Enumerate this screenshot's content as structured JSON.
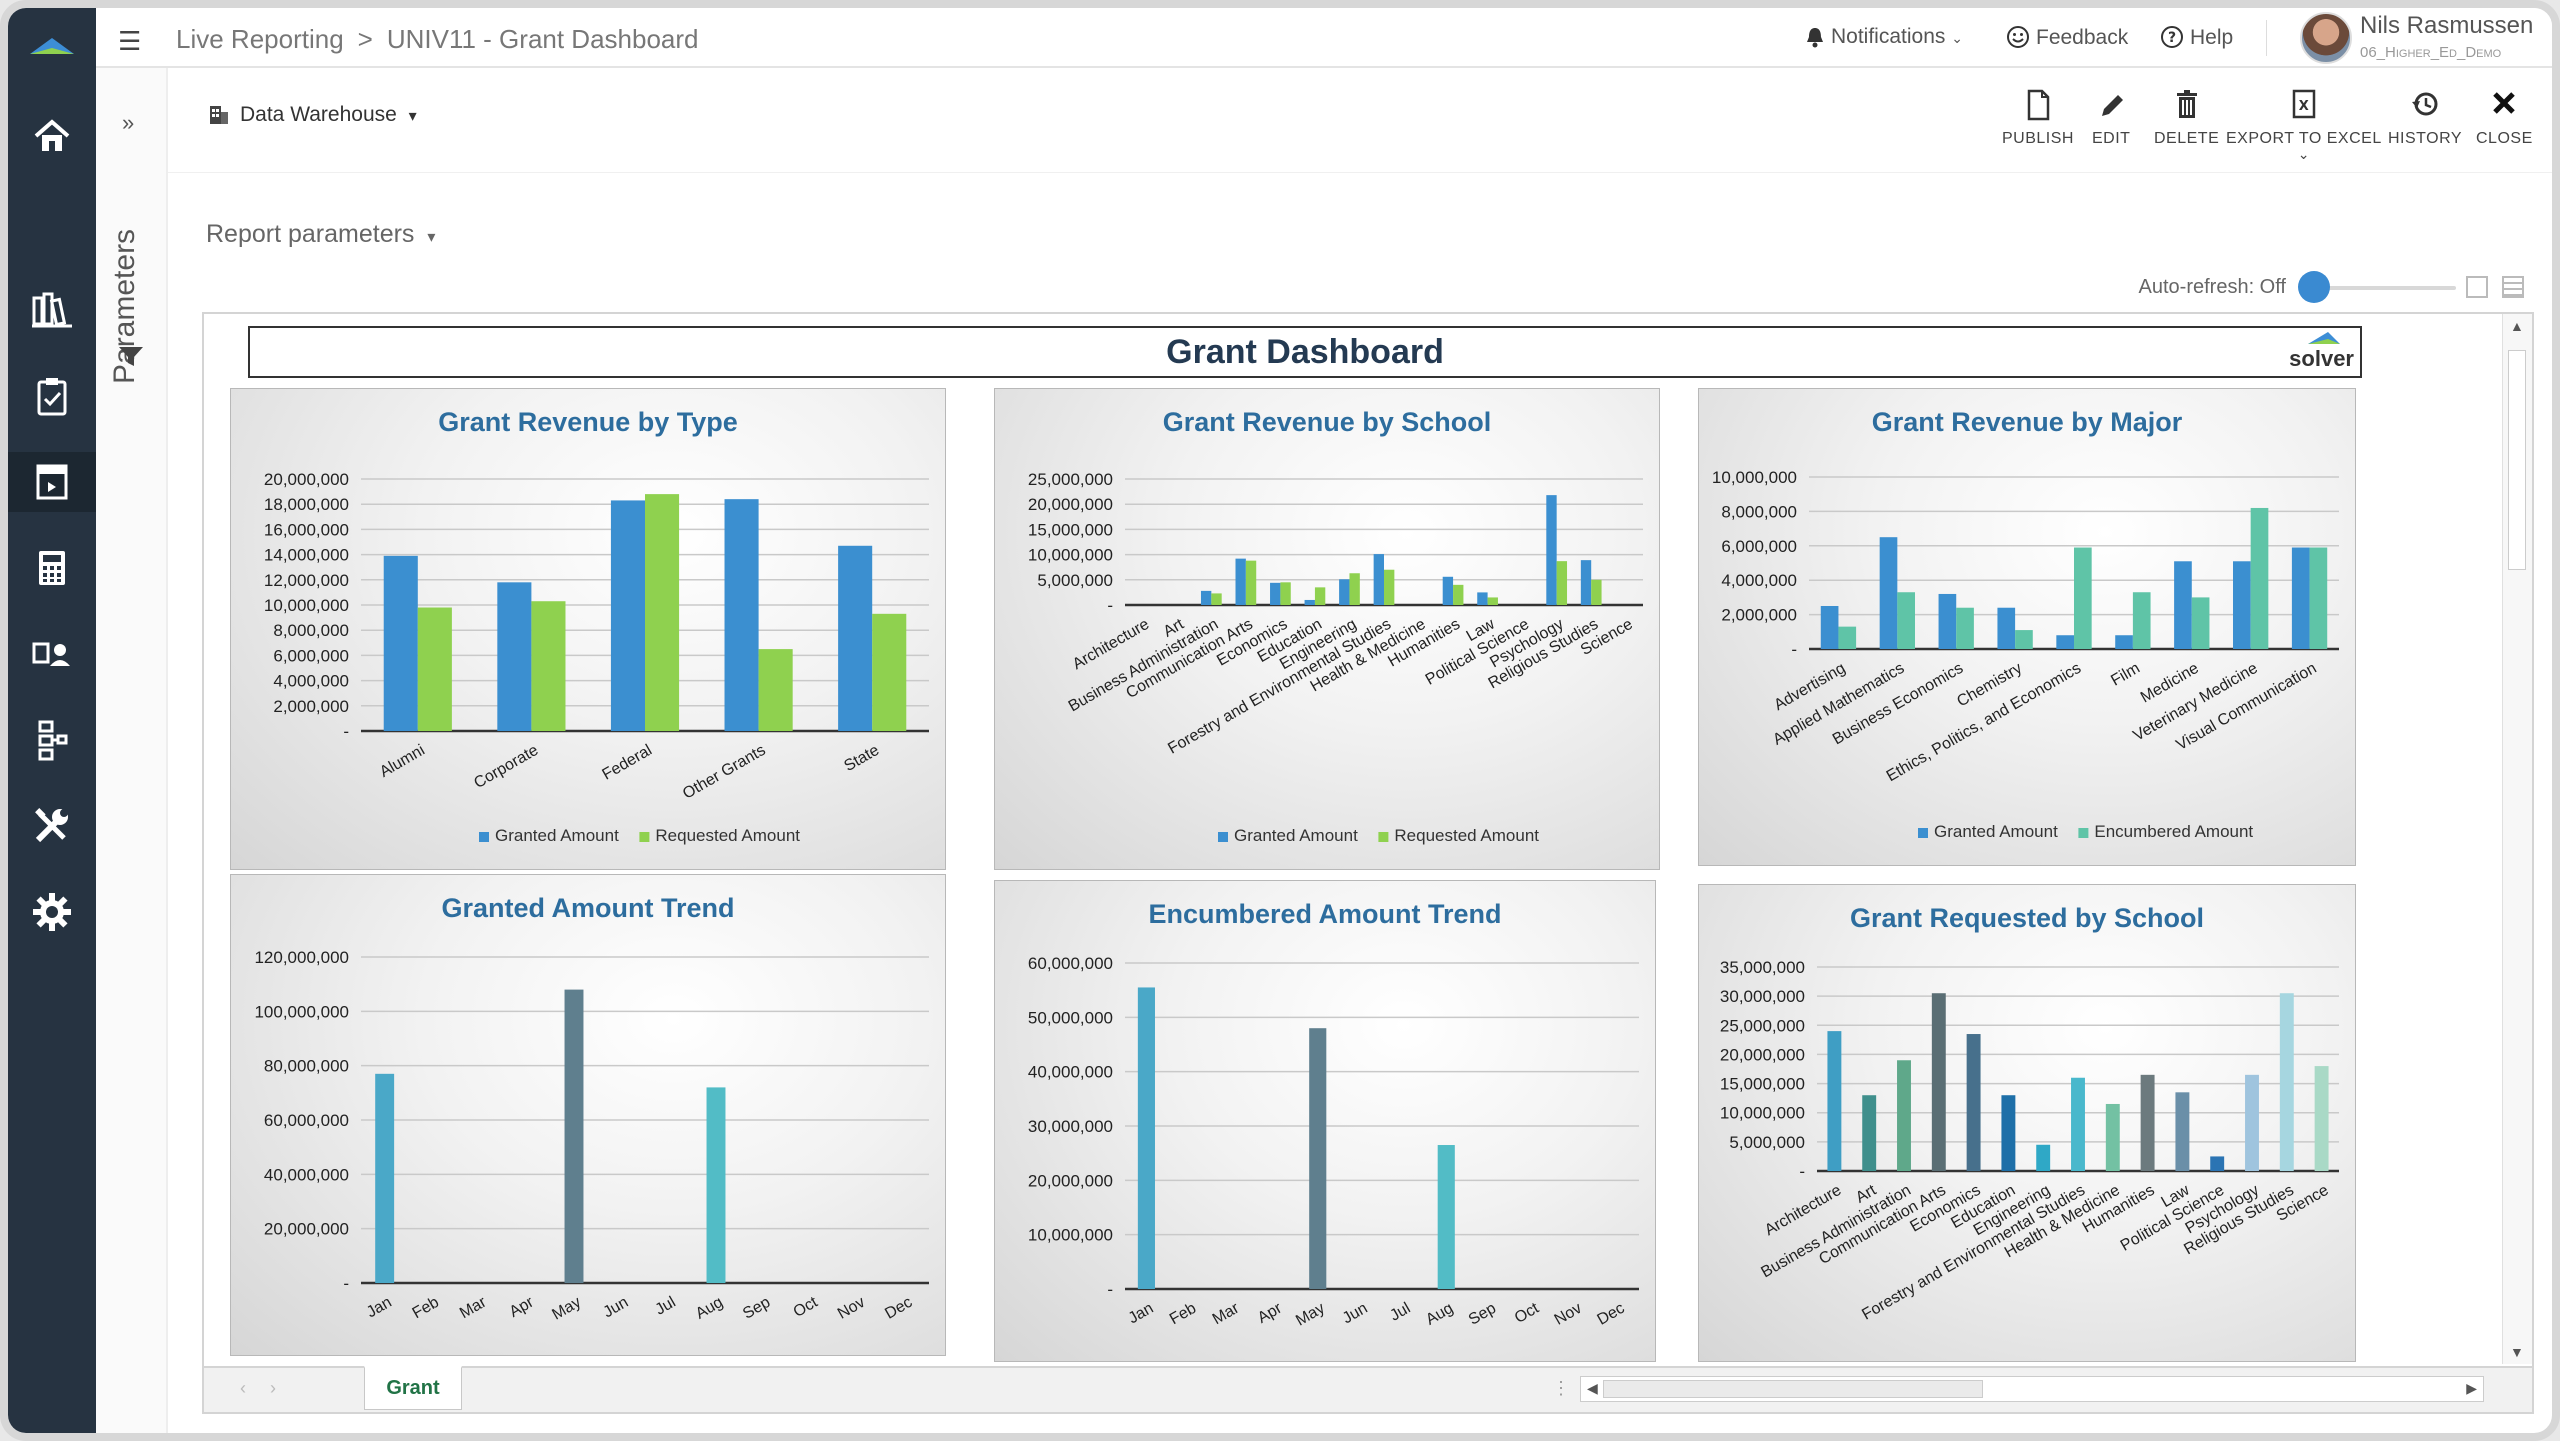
{
  "app": {
    "breadcrumb_root": "Live Reporting",
    "breadcrumb_sep": ">",
    "breadcrumb_page": "UNIV11 - Grant Dashboard"
  },
  "topbar": {
    "notifications": "Notifications",
    "feedback": "Feedback",
    "help": "Help",
    "user_name": "Nils Rasmussen",
    "user_role": "06_Higher_Ed_Demo"
  },
  "sidebar": {
    "items": [
      "home-icon",
      "books-icon",
      "clipboard-icon",
      "report-icon",
      "calculator-icon",
      "user-docs-icon",
      "hierarchy-icon",
      "tools-icon",
      "gear-icon"
    ],
    "active_index": 3
  },
  "params_panel": {
    "label": "Parameters",
    "expand": "»"
  },
  "toolbar": {
    "data_source": "Data Warehouse",
    "publish": "PUBLISH",
    "edit": "EDIT",
    "delete": "DELETE",
    "export": "EXPORT TO EXCEL",
    "history": "HISTORY",
    "close": "CLOSE"
  },
  "report_params": "Report parameters",
  "auto_refresh": "Auto-refresh: Off",
  "dashboard": {
    "title": "Grant Dashboard",
    "brand": "solver"
  },
  "sheet_tab": "Grant",
  "colors": {
    "granted": "#3b8fd0",
    "requested": "#8fd14f",
    "encumbered": "#5fc4a7",
    "title": "#2d6d9e",
    "accent": "#3a8ad1"
  },
  "chart_data": [
    {
      "type": "bar",
      "title": "Grant Revenue by Type",
      "categories": [
        "Alumni",
        "Corporate",
        "Federal",
        "Other Grants",
        "State"
      ],
      "series": [
        {
          "name": "Granted Amount",
          "values": [
            13900000,
            11800000,
            18300000,
            18400000,
            14700000
          ]
        },
        {
          "name": "Requested Amount",
          "values": [
            9800000,
            10300000,
            18800000,
            6500000,
            9300000
          ]
        }
      ],
      "ylim": [
        0,
        20000000
      ],
      "yticks": [
        "-",
        "2,000,000",
        "4,000,000",
        "6,000,000",
        "8,000,000",
        "10,000,000",
        "12,000,000",
        "14,000,000",
        "16,000,000",
        "18,000,000",
        "20,000,000"
      ],
      "legend": "bottom"
    },
    {
      "type": "bar",
      "title": "Grant Revenue by School",
      "categories": [
        "Architecture",
        "Art",
        "Business Administration",
        "Communication Arts",
        "Economics",
        "Education",
        "Engineering",
        "Forestry and Environmental Studies",
        "Health & Medicine",
        "Humanities",
        "Law",
        "Political Science",
        "Psychology",
        "Religious Studies",
        "Science"
      ],
      "series": [
        {
          "name": "Granted Amount",
          "values": [
            0,
            0,
            2800000,
            9200000,
            4400000,
            1000000,
            5100000,
            10100000,
            0,
            5600000,
            2500000,
            0,
            21800000,
            8900000,
            0
          ]
        },
        {
          "name": "Requested Amount",
          "values": [
            0,
            0,
            2300000,
            8800000,
            4500000,
            3500000,
            6300000,
            7000000,
            0,
            4000000,
            1500000,
            0,
            8700000,
            5000000,
            0
          ]
        }
      ],
      "ylim": [
        0,
        25000000
      ],
      "yticks": [
        "-",
        "5,000,000",
        "10,000,000",
        "15,000,000",
        "20,000,000",
        "25,000,000"
      ],
      "legend": "bottom"
    },
    {
      "type": "bar",
      "title": "Grant Revenue by Major",
      "categories": [
        "Advertising",
        "Applied Mathematics",
        "Business Economics",
        "Chemistry",
        "Ethics, Politics, and Economics",
        "Film",
        "Medicine",
        "Veterinary Medicine",
        "Visual Communication"
      ],
      "series": [
        {
          "name": "Granted Amount",
          "values": [
            2500000,
            6500000,
            3200000,
            2400000,
            800000,
            800000,
            5100000,
            5100000,
            5900000
          ]
        },
        {
          "name": "Encumbered Amount",
          "values": [
            1300000,
            3300000,
            2400000,
            1100000,
            5900000,
            3300000,
            3000000,
            8200000,
            5900000
          ]
        }
      ],
      "ylim": [
        0,
        10000000
      ],
      "yticks": [
        "-",
        "2,000,000",
        "4,000,000",
        "6,000,000",
        "8,000,000",
        "10,000,000"
      ],
      "legend": "bottom"
    },
    {
      "type": "bar",
      "title": "Granted Amount Trend",
      "categories": [
        "Jan",
        "Feb",
        "Mar",
        "Apr",
        "May",
        "Jun",
        "Jul",
        "Aug",
        "Sep",
        "Oct",
        "Nov",
        "Dec"
      ],
      "values": [
        77000000,
        0,
        0,
        0,
        108000000,
        0,
        0,
        72000000,
        0,
        0,
        0,
        0
      ],
      "colors": [
        "#4aa8c8",
        "",
        "",
        "",
        "#5f7f8e",
        "",
        "",
        "#52bcc6",
        "",
        "",
        "",
        ""
      ],
      "ylim": [
        0,
        120000000
      ],
      "yticks": [
        "-",
        "20,000,000",
        "40,000,000",
        "60,000,000",
        "80,000,000",
        "100,000,000",
        "120,000,000"
      ]
    },
    {
      "type": "bar",
      "title": "Encumbered Amount Trend",
      "categories": [
        "Jan",
        "Feb",
        "Mar",
        "Apr",
        "May",
        "Jun",
        "Jul",
        "Aug",
        "Sep",
        "Oct",
        "Nov",
        "Dec"
      ],
      "values": [
        55500000,
        0,
        0,
        0,
        48000000,
        0,
        0,
        26500000,
        0,
        0,
        0,
        0
      ],
      "colors": [
        "#4aa8c8",
        "",
        "",
        "",
        "#5f7f8e",
        "",
        "",
        "#52bcc6",
        "",
        "",
        "",
        ""
      ],
      "ylim": [
        0,
        60000000
      ],
      "yticks": [
        "-",
        "10,000,000",
        "20,000,000",
        "30,000,000",
        "40,000,000",
        "50,000,000",
        "60,000,000"
      ]
    },
    {
      "type": "bar",
      "title": "Grant Requested by School",
      "categories": [
        "Architecture",
        "Art",
        "Business Administration",
        "Communication Arts",
        "Economics",
        "Education",
        "Engineering",
        "Forestry and Environmental Studies",
        "Health & Medicine",
        "Humanities",
        "Law",
        "Political Science",
        "Psychology",
        "Religious Studies",
        "Science"
      ],
      "values": [
        24000000,
        13000000,
        19000000,
        30500000,
        23500000,
        13000000,
        4500000,
        16000000,
        11500000,
        16500000,
        13500000,
        2500000,
        16500000,
        30500000,
        18000000
      ],
      "colors": [
        "#3f9ec4",
        "#3f8f8c",
        "#5fa88a",
        "#5a6e74",
        "#47708c",
        "#1e6fa8",
        "#2fa8c6",
        "#49b8cc",
        "#73c1a3",
        "#6c7a7e",
        "#6a8fa8",
        "#2b74b3",
        "#9fc4de",
        "#a6d6e0",
        "#a9d9c6"
      ],
      "ylim": [
        0,
        35000000
      ],
      "yticks": [
        "-",
        "5,000,000",
        "10,000,000",
        "15,000,000",
        "20,000,000",
        "25,000,000",
        "30,000,000",
        "35,000,000"
      ]
    }
  ]
}
